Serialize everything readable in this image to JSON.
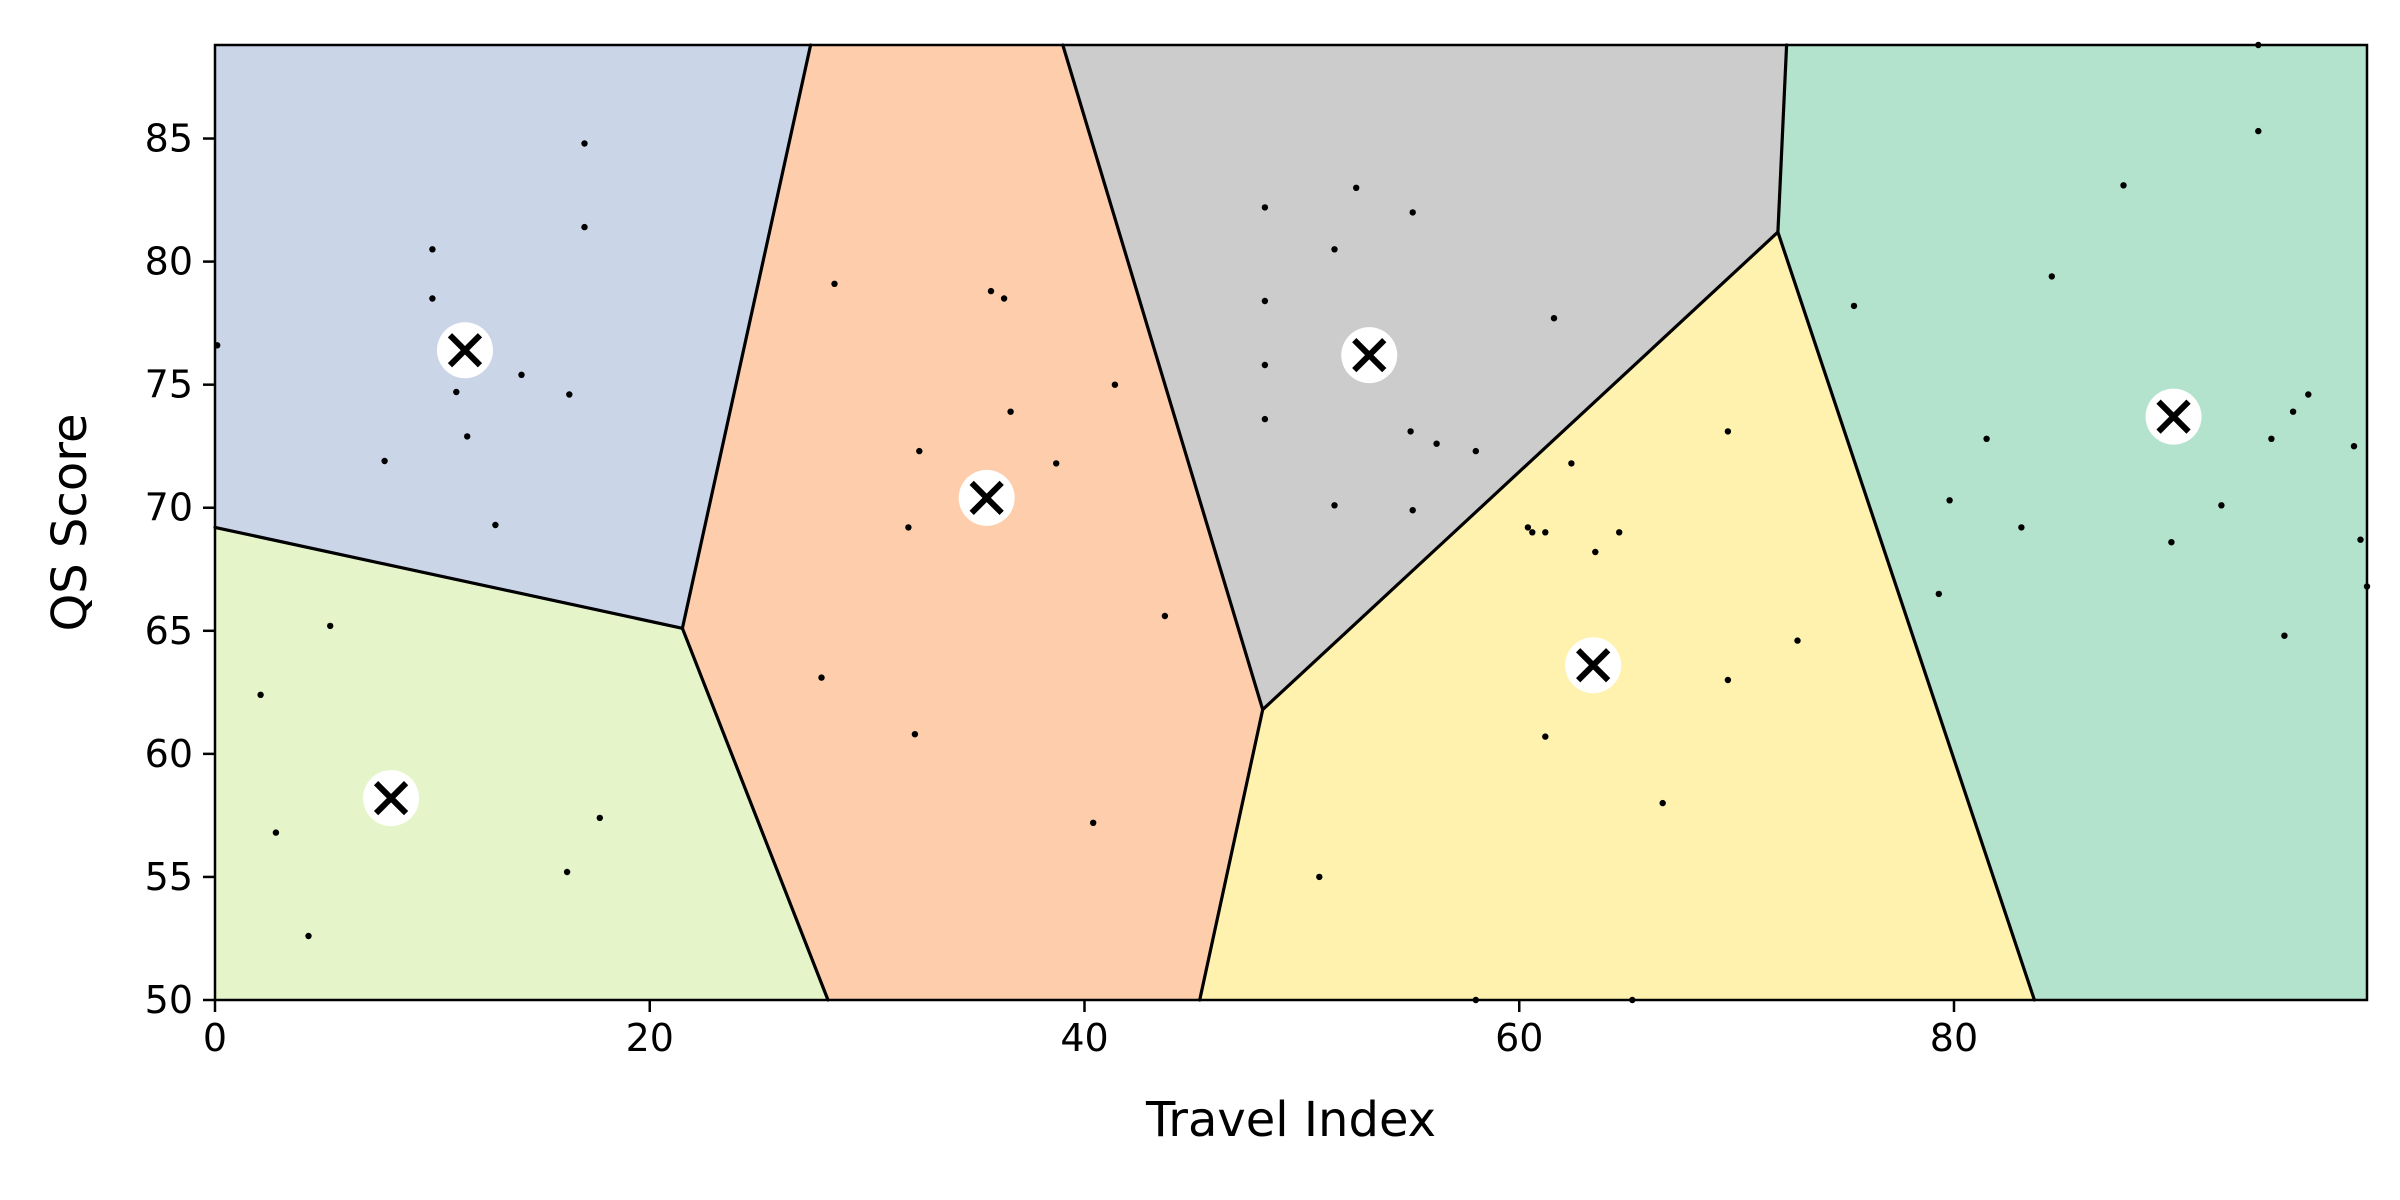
{
  "chart_data": {
    "type": "scatter",
    "xlabel": "Travel Index",
    "ylabel": "QS Score",
    "xlim": [
      0,
      99
    ],
    "ylim": [
      50,
      88.8
    ],
    "x_ticks": [
      0,
      20,
      40,
      60,
      80
    ],
    "y_ticks": [
      50,
      55,
      60,
      65,
      70,
      75,
      80,
      85
    ],
    "grid": false,
    "regions": [
      {
        "color": "#cbd5e8",
        "polygon": [
          [
            0,
            88.8
          ],
          [
            27.4,
            88.8
          ],
          [
            21.5,
            65.1
          ],
          [
            0,
            69.2
          ]
        ]
      },
      {
        "color": "#e6f5c9",
        "polygon": [
          [
            0,
            69.2
          ],
          [
            21.5,
            65.1
          ],
          [
            28.2,
            50
          ],
          [
            0,
            50
          ]
        ]
      },
      {
        "color": "#fdcdac",
        "polygon": [
          [
            27.4,
            88.8
          ],
          [
            39.0,
            88.8
          ],
          [
            48.2,
            61.8
          ],
          [
            45.3,
            50
          ],
          [
            28.2,
            50
          ],
          [
            21.5,
            65.1
          ]
        ]
      },
      {
        "color": "#cccccc",
        "polygon": [
          [
            39.0,
            88.8
          ],
          [
            72.3,
            88.8
          ],
          [
            71.9,
            81.2
          ],
          [
            48.2,
            61.8
          ]
        ]
      },
      {
        "color": "#fff2ae",
        "polygon": [
          [
            48.2,
            61.8
          ],
          [
            71.9,
            81.2
          ],
          [
            83.7,
            50
          ],
          [
            45.3,
            50
          ]
        ]
      },
      {
        "color": "#b3e2cd",
        "polygon": [
          [
            72.3,
            88.8
          ],
          [
            99,
            88.8
          ],
          [
            99,
            50
          ],
          [
            83.7,
            50
          ],
          [
            71.9,
            81.2
          ]
        ]
      }
    ],
    "boundaries": [
      [
        [
          0,
          69.2
        ],
        [
          21.5,
          65.1
        ]
      ],
      [
        [
          21.5,
          65.1
        ],
        [
          27.4,
          88.8
        ]
      ],
      [
        [
          21.5,
          65.1
        ],
        [
          28.2,
          50
        ]
      ],
      [
        [
          39.0,
          88.8
        ],
        [
          48.2,
          61.8
        ]
      ],
      [
        [
          48.2,
          61.8
        ],
        [
          45.3,
          50
        ]
      ],
      [
        [
          48.2,
          61.8
        ],
        [
          71.9,
          81.2
        ]
      ],
      [
        [
          71.9,
          81.2
        ],
        [
          72.3,
          88.8
        ]
      ],
      [
        [
          71.9,
          81.2
        ],
        [
          83.7,
          50
        ]
      ]
    ],
    "centroids": [
      {
        "x": 11.5,
        "y": 76.4
      },
      {
        "x": 8.1,
        "y": 58.2
      },
      {
        "x": 35.5,
        "y": 70.4
      },
      {
        "x": 53.1,
        "y": 76.2
      },
      {
        "x": 63.4,
        "y": 63.6
      },
      {
        "x": 90.1,
        "y": 73.7
      }
    ],
    "points": [
      [
        0.1,
        76.6
      ],
      [
        7.8,
        71.9
      ],
      [
        10.0,
        80.5
      ],
      [
        10.0,
        78.5
      ],
      [
        11.1,
        74.7
      ],
      [
        11.6,
        72.9
      ],
      [
        12.9,
        69.3
      ],
      [
        14.1,
        75.4
      ],
      [
        16.3,
        74.6
      ],
      [
        17.0,
        84.8
      ],
      [
        17.0,
        81.4
      ],
      [
        2.1,
        62.4
      ],
      [
        2.8,
        56.8
      ],
      [
        4.3,
        52.6
      ],
      [
        5.3,
        65.2
      ],
      [
        16.2,
        55.2
      ],
      [
        17.7,
        57.4
      ],
      [
        27.9,
        63.1
      ],
      [
        28.5,
        79.1
      ],
      [
        31.9,
        69.2
      ],
      [
        32.2,
        60.8
      ],
      [
        32.4,
        72.3
      ],
      [
        35.7,
        78.8
      ],
      [
        36.3,
        78.5
      ],
      [
        36.6,
        73.9
      ],
      [
        38.7,
        71.8
      ],
      [
        40.4,
        57.2
      ],
      [
        41.4,
        75.0
      ],
      [
        43.7,
        65.6
      ],
      [
        48.3,
        82.2
      ],
      [
        48.3,
        78.4
      ],
      [
        48.3,
        75.8
      ],
      [
        48.3,
        73.6
      ],
      [
        51.5,
        80.5
      ],
      [
        51.5,
        70.1
      ],
      [
        52.5,
        83.0
      ],
      [
        55.0,
        73.1
      ],
      [
        55.1,
        82.0
      ],
      [
        55.1,
        69.9
      ],
      [
        56.2,
        72.6
      ],
      [
        58.0,
        72.3
      ],
      [
        61.6,
        77.7
      ],
      [
        50.8,
        55.0
      ],
      [
        58.0,
        50.0
      ],
      [
        60.4,
        69.2
      ],
      [
        60.6,
        69.0
      ],
      [
        61.2,
        69.0
      ],
      [
        61.2,
        60.7
      ],
      [
        62.4,
        71.8
      ],
      [
        63.5,
        68.2
      ],
      [
        64.6,
        69.0
      ],
      [
        65.2,
        50.0
      ],
      [
        66.6,
        58.0
      ],
      [
        69.6,
        73.1
      ],
      [
        69.6,
        63.0
      ],
      [
        72.8,
        64.6
      ],
      [
        75.4,
        78.2
      ],
      [
        79.3,
        66.5
      ],
      [
        79.8,
        70.3
      ],
      [
        81.5,
        72.8
      ],
      [
        83.1,
        69.2
      ],
      [
        84.5,
        79.4
      ],
      [
        87.8,
        83.1
      ],
      [
        90.0,
        68.6
      ],
      [
        92.3,
        70.1
      ],
      [
        94.0,
        88.8
      ],
      [
        94.0,
        85.3
      ],
      [
        94.6,
        72.8
      ],
      [
        95.2,
        64.8
      ],
      [
        95.6,
        73.9
      ],
      [
        96.3,
        74.6
      ],
      [
        98.4,
        72.5
      ],
      [
        98.7,
        68.7
      ],
      [
        99.0,
        66.8
      ]
    ]
  }
}
